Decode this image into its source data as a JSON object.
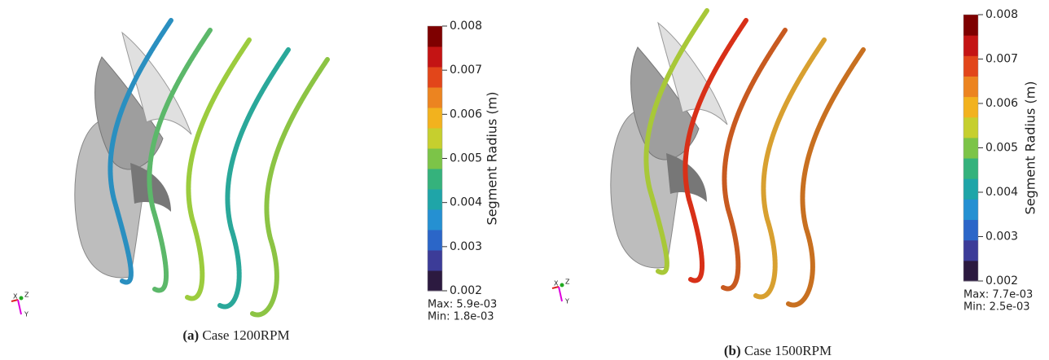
{
  "panels": [
    {
      "caption": {
        "label": "(a)",
        "text": "Case 1200RPM"
      },
      "colorbar": {
        "label": "Segment Radius (m)",
        "range": [
          0.002,
          0.008
        ],
        "ticks": [
          0.002,
          0.003,
          0.004,
          0.005,
          0.006,
          0.007,
          0.008
        ],
        "max": "Max: 5.9e-03",
        "min": "Min: 1.8e-03",
        "colors": [
          "#2c1a40",
          "#3c3c98",
          "#2b66c8",
          "#2590d2",
          "#1fa5a8",
          "#35b27c",
          "#7cc448",
          "#c6cf2e",
          "#f2b21e",
          "#ec8420",
          "#e2461a",
          "#c41414",
          "#7e0000"
        ]
      },
      "triad": [
        "X",
        "Y",
        "Z"
      ]
    },
    {
      "caption": {
        "label": "(b)",
        "text": "Case 1500RPM"
      },
      "colorbar": {
        "label": "Segment Radius (m)",
        "range": [
          0.002,
          0.008
        ],
        "ticks": [
          0.002,
          0.003,
          0.004,
          0.005,
          0.006,
          0.007,
          0.008
        ],
        "max": "Max: 7.7e-03",
        "min": "Min: 2.5e-03",
        "colors": [
          "#2c1a40",
          "#3c3c98",
          "#2b66c8",
          "#2590d2",
          "#1fa5a8",
          "#35b27c",
          "#7cc448",
          "#c6cf2e",
          "#f2b21e",
          "#ec8420",
          "#e2461a",
          "#c41414",
          "#7e0000"
        ]
      },
      "triad": [
        "X",
        "Y",
        "Z"
      ]
    }
  ]
}
